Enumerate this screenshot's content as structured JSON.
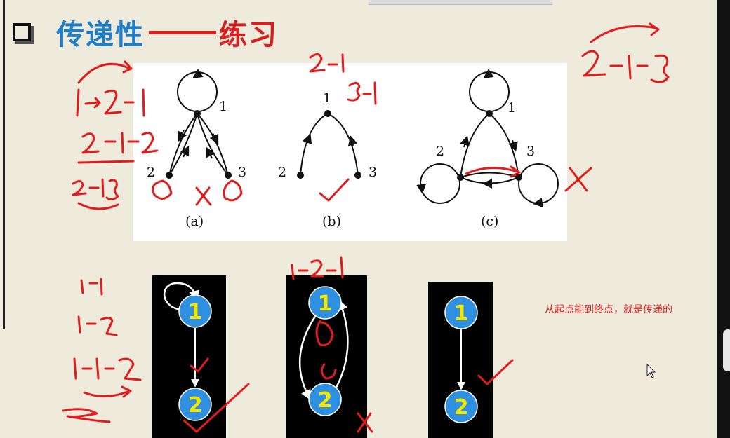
{
  "title": {
    "main": "传递性",
    "sub": "练习"
  },
  "diagram_top": {
    "graphs": [
      {
        "caption": "(a)",
        "node_labels": [
          "1",
          "2",
          "3"
        ]
      },
      {
        "caption": "(b)",
        "node_labels": [
          "1",
          "2",
          "3"
        ]
      },
      {
        "caption": "(c)",
        "node_labels": [
          "1",
          "2",
          "3"
        ]
      }
    ]
  },
  "diagram_bottom": {
    "graphs": [
      {
        "node_labels": [
          "1",
          "2"
        ]
      },
      {
        "node_labels": [
          "1",
          "2"
        ]
      },
      {
        "node_labels": [
          "1",
          "2"
        ]
      }
    ]
  },
  "note": "从起点能到终点，就是传递的",
  "colors": {
    "background": "#efebdc",
    "title_blue": "#1f7ec9",
    "title_red": "#d81e1e",
    "ink_red": "#e21c1c",
    "node_blue": "#2f8fe0",
    "node_text": "#f3e600"
  }
}
